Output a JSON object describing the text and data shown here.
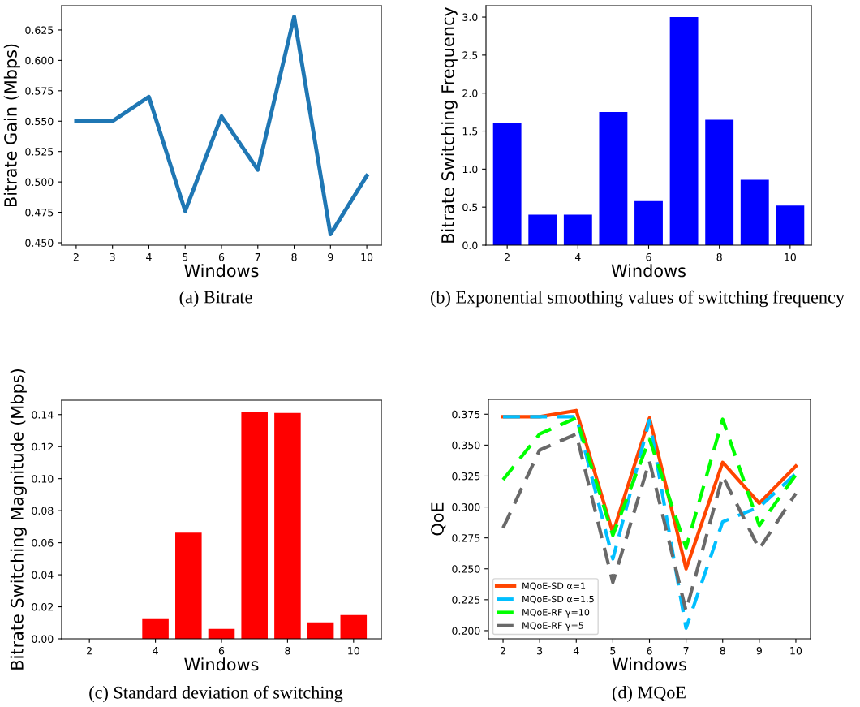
{
  "chart_data": [
    {
      "type": "line",
      "xlabel": "Windows",
      "ylabel": "Bitrate Gain (Mbps)",
      "annotations": [
        "(a) Bitrate"
      ],
      "x": [
        2,
        3,
        4,
        5,
        6,
        7,
        8,
        9,
        10
      ],
      "series": [
        {
          "color": "#1f77b4",
          "values": [
            0.55,
            0.55,
            0.57,
            0.476,
            0.554,
            0.51,
            0.636,
            0.457,
            0.505
          ]
        }
      ],
      "xlim": [
        1.6,
        10.4
      ],
      "xticks": [
        2,
        3,
        4,
        5,
        6,
        7,
        8,
        9,
        10
      ],
      "ylim": [
        0.448,
        0.645
      ],
      "yticks": [
        {
          "value": 0.45,
          "label": "0.450"
        },
        {
          "value": 0.475,
          "label": "0.475"
        },
        {
          "value": 0.5,
          "label": "0.500"
        },
        {
          "value": 0.525,
          "label": "0.525"
        },
        {
          "value": 0.55,
          "label": "0.550"
        },
        {
          "value": 0.575,
          "label": "0.575"
        },
        {
          "value": 0.6,
          "label": "0.600"
        },
        {
          "value": 0.625,
          "label": "0.625"
        }
      ],
      "grid": false,
      "legend": false
    },
    {
      "type": "bar",
      "xlabel": "Windows",
      "ylabel": "Bitrate Switching Frequency",
      "annotations": [
        "(b) Exponential smoothing values of switching frequency"
      ],
      "x": [
        2,
        3,
        4,
        5,
        6,
        7,
        8,
        9,
        10
      ],
      "series": [
        {
          "color": "#0000ff",
          "values": [
            1.61,
            0.4,
            0.4,
            1.75,
            0.58,
            3.0,
            1.65,
            0.86,
            0.52
          ]
        }
      ],
      "xlim": [
        1.4,
        10.6
      ],
      "xticks": [
        2,
        4,
        6,
        8,
        10
      ],
      "ylim": [
        0,
        3.15
      ],
      "yticks": [
        {
          "value": 0,
          "label": "0.0"
        },
        {
          "value": 0.5,
          "label": "0.5"
        },
        {
          "value": 1,
          "label": "1.0"
        },
        {
          "value": 1.5,
          "label": "1.5"
        },
        {
          "value": 2,
          "label": "2.0"
        },
        {
          "value": 2.5,
          "label": "2.5"
        },
        {
          "value": 3,
          "label": "3.0"
        }
      ],
      "grid": false,
      "legend": false
    },
    {
      "type": "bar",
      "xlabel": "Windows",
      "ylabel": "Bitrate Switching Magnitude (Mbps)",
      "annotations": [
        "(c) Standard deviation of switching"
      ],
      "x": [
        2,
        3,
        4,
        5,
        6,
        7,
        8,
        9,
        10
      ],
      "series": [
        {
          "color": "#ff0000",
          "values": [
            0,
            0,
            0.0128,
            0.0663,
            0.0062,
            0.1415,
            0.141,
            0.0102,
            0.0148
          ]
        }
      ],
      "xlim": [
        1.16,
        10.84
      ],
      "xticks": [
        2,
        4,
        6,
        8,
        10
      ],
      "ylim": [
        0,
        0.149
      ],
      "yticks": [
        {
          "value": 0,
          "label": "0.00"
        },
        {
          "value": 0.02,
          "label": "0.02"
        },
        {
          "value": 0.04,
          "label": "0.04"
        },
        {
          "value": 0.06,
          "label": "0.06"
        },
        {
          "value": 0.08,
          "label": "0.08"
        },
        {
          "value": 0.1,
          "label": "0.10"
        },
        {
          "value": 0.12,
          "label": "0.12"
        },
        {
          "value": 0.14,
          "label": "0.14"
        }
      ],
      "grid": false,
      "legend": false
    },
    {
      "type": "line",
      "xlabel": "Windows",
      "ylabel": "QoE",
      "annotations": [
        "(d) MQoE"
      ],
      "x": [
        2,
        3,
        4,
        5,
        6,
        7,
        8,
        9,
        10
      ],
      "series": [
        {
          "name": "MQoE-SD α=1",
          "color": "#ff4500",
          "line_style": "solid",
          "values": [
            0.373,
            0.373,
            0.378,
            0.279,
            0.372,
            0.25,
            0.336,
            0.303,
            0.333
          ]
        },
        {
          "name": "MQoE-SD α=1.5",
          "color": "#00bfff",
          "line_style": "dashed",
          "values": [
            0.373,
            0.373,
            0.373,
            0.258,
            0.37,
            0.202,
            0.288,
            0.3,
            0.327
          ]
        },
        {
          "name": "MQoE-RF γ=10",
          "color": "#00ff00",
          "line_style": "dashed",
          "values": [
            0.322,
            0.359,
            0.372,
            0.277,
            0.355,
            0.267,
            0.371,
            0.285,
            0.326
          ]
        },
        {
          "name": "MQoE-RF γ=5",
          "color": "#696969",
          "line_style": "dashed",
          "values": [
            0.283,
            0.346,
            0.359,
            0.239,
            0.337,
            0.216,
            0.325,
            0.266,
            0.311
          ]
        }
      ],
      "xlim": [
        1.6,
        10.4
      ],
      "xticks": [
        2,
        3,
        4,
        5,
        6,
        7,
        8,
        9,
        10
      ],
      "ylim": [
        0.1934,
        0.387
      ],
      "yticks": [
        {
          "value": 0.2,
          "label": "0.200"
        },
        {
          "value": 0.225,
          "label": "0.225"
        },
        {
          "value": 0.25,
          "label": "0.250"
        },
        {
          "value": 0.275,
          "label": "0.275"
        },
        {
          "value": 0.3,
          "label": "0.300"
        },
        {
          "value": 0.325,
          "label": "0.325"
        },
        {
          "value": 0.35,
          "label": "0.350"
        },
        {
          "value": 0.375,
          "label": "0.375"
        }
      ],
      "grid": false,
      "legend": "lower left"
    }
  ]
}
